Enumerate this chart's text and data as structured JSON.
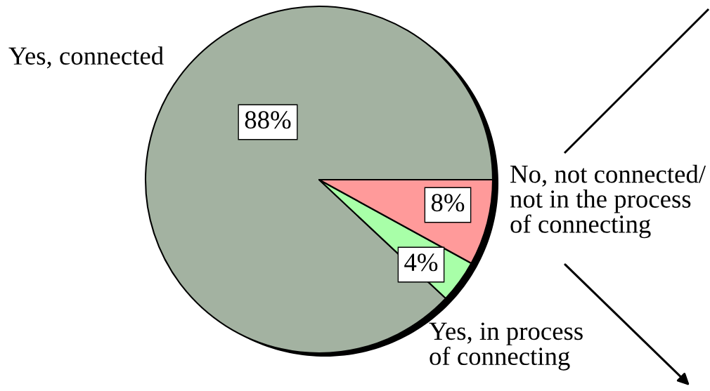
{
  "chart_data": {
    "type": "pie",
    "categories": [
      "Yes, connected",
      "Yes, in process\nof connecting",
      "No, not connected/\nnot in the process\nof connecting"
    ],
    "values": [
      88,
      4,
      8
    ],
    "colors": [
      "#a3b2a1",
      "#a8ffa8",
      "#ff9a9a"
    ],
    "value_labels": [
      "88%",
      "4%",
      "8%"
    ]
  }
}
